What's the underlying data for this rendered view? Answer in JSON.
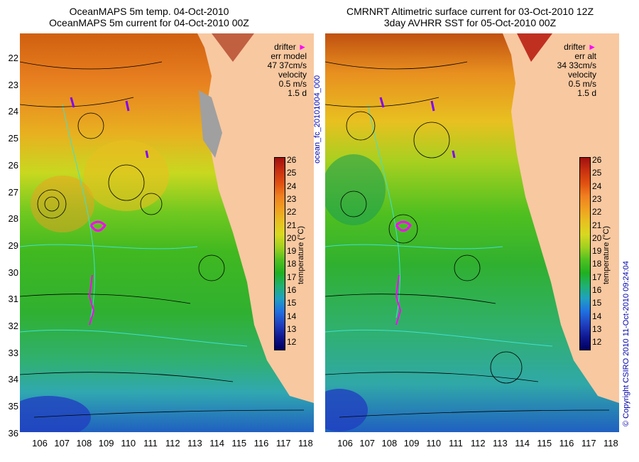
{
  "left": {
    "title1": "OceanMAPS 5m temp. 04-Oct-2010",
    "title2": "OceanMAPS 5m current for 04-Oct-2010 00Z",
    "legend": {
      "drifter": "drifter",
      "err_label": "err model",
      "err_value": "47 37cm/s",
      "velocity": "velocity",
      "scale": "0.5 m/s",
      "days": "1.5 d"
    }
  },
  "right": {
    "title1": "CMRNRT Altimetric surface current for 03-Oct-2010 12Z",
    "title2": "3day AVHRR SST for 05-Oct-2010 00Z",
    "legend": {
      "drifter": "drifter",
      "err_label": "err alt",
      "err_value": "34 33cm/s",
      "velocity": "velocity",
      "scale": "0.5 m/s",
      "days": "1.5 d"
    }
  },
  "lat_ticks": [
    "22",
    "23",
    "24",
    "25",
    "26",
    "27",
    "28",
    "29",
    "30",
    "31",
    "32",
    "33",
    "34",
    "35",
    "36"
  ],
  "lon_ticks": [
    "106",
    "107",
    "108",
    "109",
    "110",
    "111",
    "112",
    "113",
    "114",
    "115",
    "116",
    "117",
    "118"
  ],
  "colorbar": {
    "ticks": [
      "26",
      "25",
      "24",
      "23",
      "22",
      "21",
      "20",
      "19",
      "18",
      "17",
      "16",
      "15",
      "14",
      "13",
      "12"
    ],
    "label": "temperature (°C)",
    "colors": [
      "#a01010",
      "#c83010",
      "#e05010",
      "#f08020",
      "#f0a020",
      "#e8c020",
      "#d8d820",
      "#a0d020",
      "#50c020",
      "#20b020",
      "#20b070",
      "#20a0c0",
      "#2070e0",
      "#2040c0",
      "#101890",
      "#000060"
    ]
  },
  "side_label": "ocean_fc_20101004_000",
  "copyright": "© Copyright CSIRO 2010   11-Oct-2010 09:24:04",
  "colors": {
    "land": "#f8c8a0",
    "contour": "#40e0d0",
    "drifter": "#ff00ff",
    "grey_land": "#a0a0a0"
  }
}
